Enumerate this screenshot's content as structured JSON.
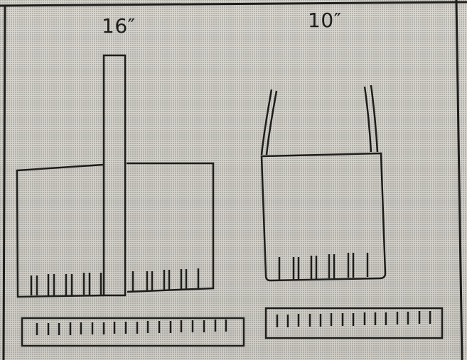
{
  "labels": {
    "left_size": "16″",
    "right_size": "10″"
  },
  "colors": {
    "ink": "#1d1d1b",
    "paper": "#d6d4cd",
    "border": "#2a2a27"
  }
}
